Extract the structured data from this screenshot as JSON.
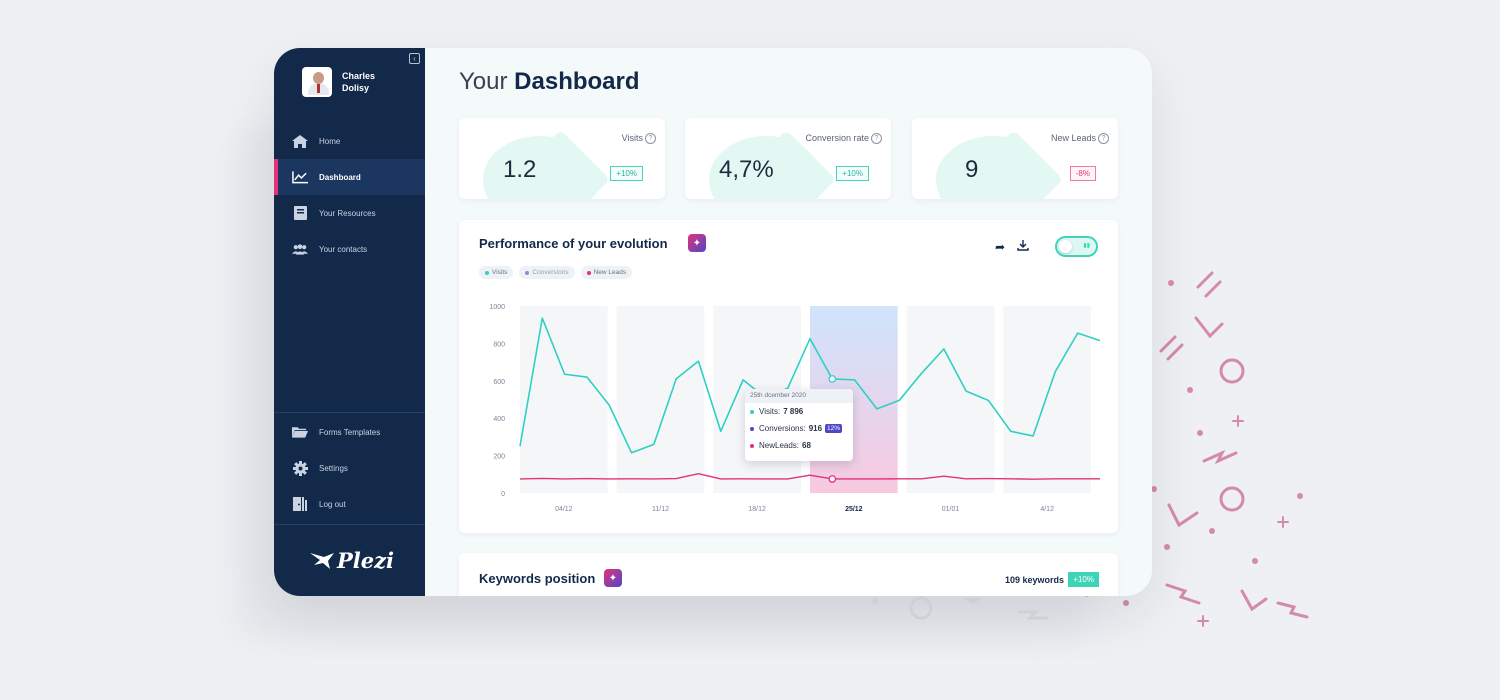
{
  "user": {
    "name": "Charles Dolisy"
  },
  "sidebar": {
    "top_items": [
      {
        "label": "Home",
        "icon": "home-icon"
      },
      {
        "label": "Dashboard",
        "icon": "chart-icon",
        "active": true
      },
      {
        "label": "Your Resources",
        "icon": "book-icon"
      },
      {
        "label": "Your contacts",
        "icon": "contacts-icon"
      }
    ],
    "bottom_items": [
      {
        "label": "Forms Templates",
        "icon": "folder-icon"
      },
      {
        "label": "Settings",
        "icon": "gear-icon"
      },
      {
        "label": "Log out",
        "icon": "logout-icon"
      }
    ],
    "logo": "Plezi"
  },
  "page": {
    "title_light": "Your",
    "title_bold": "Dashboard"
  },
  "kpis": [
    {
      "label": "Visits",
      "value": "1.2",
      "badge": "+10%",
      "trend": "up"
    },
    {
      "label": "Conversion rate",
      "value": "4,7%",
      "badge": "+10%",
      "trend": "up"
    },
    {
      "label": "New Leads",
      "value": "9",
      "badge": "-8%",
      "trend": "down"
    }
  ],
  "performance": {
    "title": "Performance of your evolution",
    "legend": [
      "Visits",
      "Conversions",
      "New Leads"
    ],
    "tooltip": {
      "date": "25th dcember 2020",
      "visits_label": "Visits:",
      "visits_value": "7 896",
      "conversions_label": "Conversions:",
      "conversions_value": "916",
      "conversions_pct": "12%",
      "leads_label": "NewLeads:",
      "leads_value": "68"
    }
  },
  "keywords": {
    "title": "Keywords position",
    "count": "109 keywords",
    "badge": "+10%"
  },
  "colors": {
    "visits": "#2fd0c4",
    "conversions": "#4f46c8",
    "leads": "#e2337a",
    "navy": "#12294a",
    "mint": "#3fd3b8"
  },
  "chart_data": {
    "type": "line",
    "ylim": [
      0,
      1000
    ],
    "yticks": [
      "0",
      "200",
      "400",
      "600",
      "800",
      "1000"
    ],
    "xticks": [
      "04/12",
      "11/12",
      "18/12",
      "25/12",
      "01/01",
      "4/12"
    ],
    "highlight_band": "25/12",
    "series": [
      {
        "name": "Visits",
        "values": [
          250,
          935,
          635,
          620,
          470,
          215,
          260,
          610,
          705,
          330,
          605,
          510,
          560,
          825,
          610,
          605,
          450,
          495,
          640,
          770,
          545,
          495,
          330,
          305,
          650,
          855,
          815
        ]
      },
      {
        "name": "New Leads",
        "values": [
          75,
          78,
          75,
          77,
          75,
          76,
          75,
          77,
          103,
          75,
          76,
          75,
          75,
          95,
          75,
          75,
          75,
          76,
          76,
          90,
          76,
          77,
          76,
          74,
          76,
          76,
          76
        ]
      }
    ]
  }
}
